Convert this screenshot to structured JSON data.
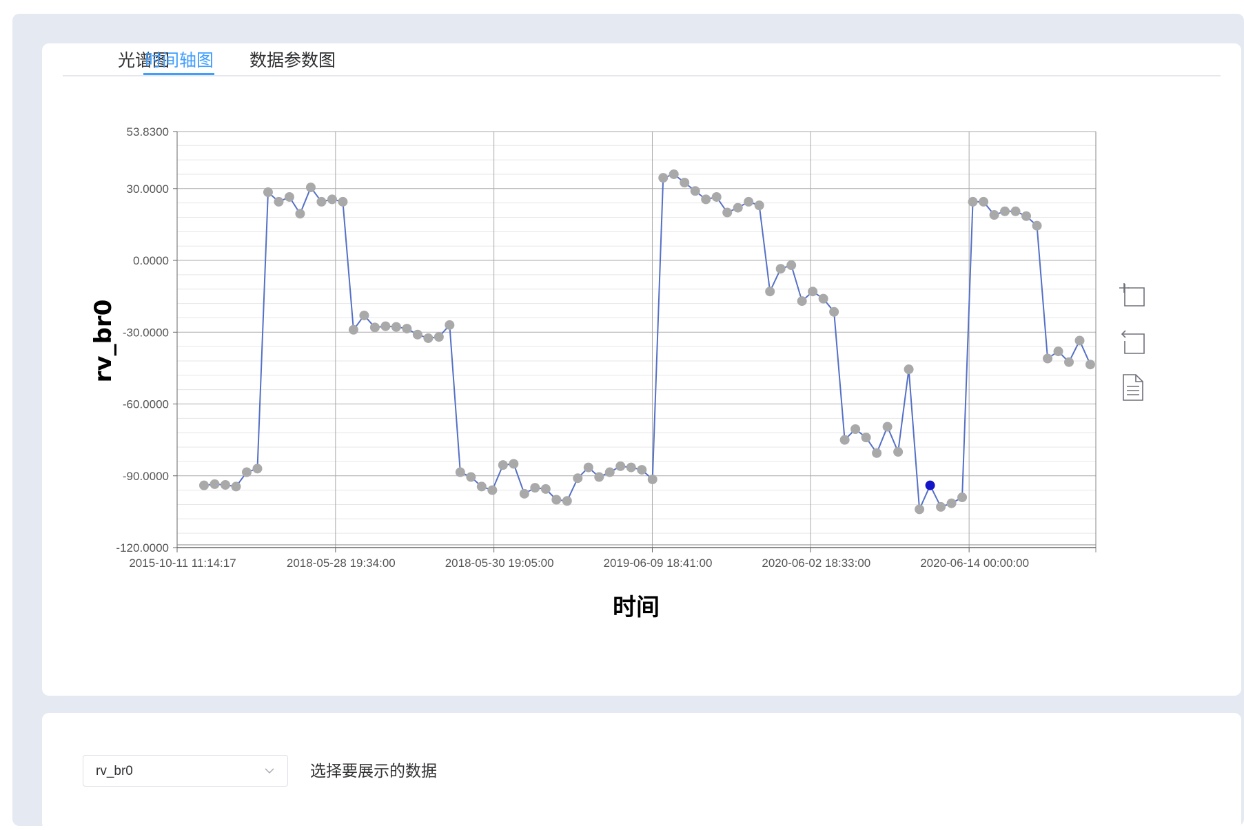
{
  "tabs": [
    {
      "label": "光谱图",
      "active": false
    },
    {
      "label": "时间轴图",
      "active": true
    },
    {
      "label": "数据参数图",
      "active": false
    }
  ],
  "colors": {
    "accent": "#409eff",
    "line": "#5470c6",
    "point": "#a9a9a9",
    "highlight_point": "#1515c8",
    "grid": "#c9c9c9"
  },
  "toolbox": [
    {
      "name": "data-zoom-icon"
    },
    {
      "name": "zoom-reset-icon"
    },
    {
      "name": "data-view-icon"
    }
  ],
  "chart_data": {
    "type": "line",
    "xlabel": "时间",
    "ylabel": "rv_br0",
    "ylim": [
      -120,
      53.83
    ],
    "y_ticks": [
      "53.8300",
      "30.0000",
      "0.0000",
      "-30.0000",
      "-60.0000",
      "-90.0000",
      "-120.0000"
    ],
    "x_ticks": [
      "2015-10-11 11:14:17",
      "2018-05-28 19:34:00",
      "2018-05-30 19:05:00",
      "2019-06-09 18:41:00",
      "2020-06-02 18:33:00",
      "2020-06-14 00:00:00"
    ],
    "grid": true,
    "legend": "none",
    "highlighted_index": 68,
    "series": [
      {
        "values": [
          -94,
          -93.5,
          -93.8,
          -94.5,
          -88.5,
          -87,
          28.5,
          24.5,
          26.5,
          19.5,
          30.5,
          24.5,
          25.5,
          24.5,
          -29,
          -23,
          -28,
          -27.5,
          -27.8,
          -28.5,
          -31,
          -32.5,
          -32,
          -27,
          -88.5,
          -90.5,
          -94.5,
          -96,
          -85.5,
          -85,
          -97.5,
          -95,
          -95.5,
          -100,
          -100.5,
          -91,
          -86.5,
          -90.5,
          -88.5,
          -86,
          -86.5,
          -87.5,
          -91.5,
          34.5,
          36,
          32.5,
          29,
          25.5,
          26.5,
          20,
          22,
          24.5,
          23,
          -13,
          -3.5,
          -2,
          -17,
          -13,
          -16,
          -21.5,
          -75,
          -70.5,
          -74,
          -80.5,
          -69.5,
          -80,
          -45.5,
          -104,
          -94,
          -103,
          -101.5,
          -99,
          24.5,
          24.5,
          19,
          20.5,
          20.5,
          18.5,
          14.5,
          -41,
          -38,
          -42.5,
          -33.5,
          -43.5
        ]
      }
    ]
  },
  "selector": {
    "value": "rv_br0",
    "hint": "选择要展示的数据"
  }
}
